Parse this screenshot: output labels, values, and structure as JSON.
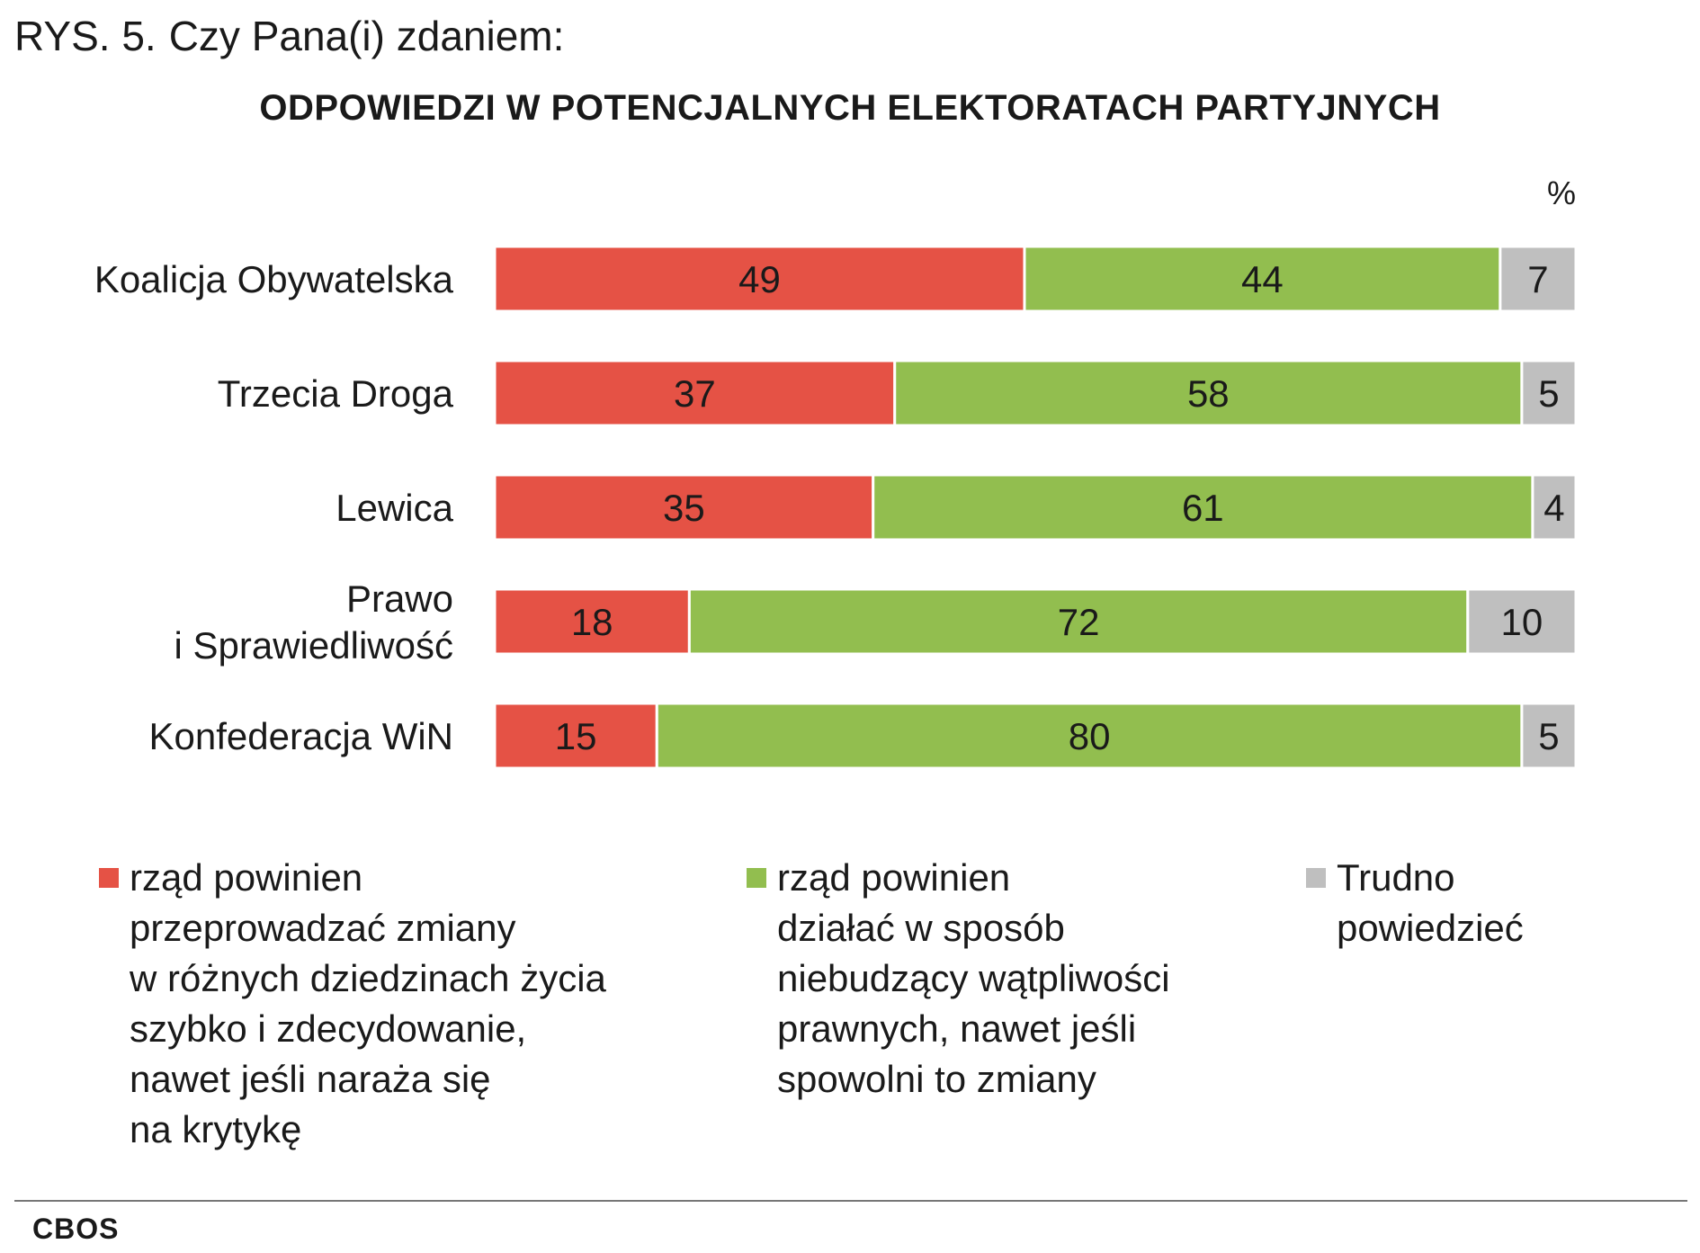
{
  "title": {
    "number": "RYS. 5.",
    "question": "Czy Pana(i) zdaniem:"
  },
  "subtitle": "ODPOWIEDZI W POTENCJALNYCH ELEKTORATACH PARTYJNYCH",
  "unit": "%",
  "source": "CBOS",
  "chart_data": {
    "type": "bar",
    "orientation": "horizontal",
    "stacked": true,
    "xlim": [
      0,
      100
    ],
    "grid": false,
    "legend_position": "bottom",
    "categories": [
      [
        "Koalicja Obywatelska"
      ],
      [
        "Trzecia Droga"
      ],
      [
        "Lewica"
      ],
      [
        "Prawo",
        "i Sprawiedliwość"
      ],
      [
        "Konfederacja WiN"
      ]
    ],
    "series": [
      {
        "name": "rząd powinien\nprzeprowadzać zmiany\nw różnych dziedzinach życia\nszybko i zdecydowanie,\nnawet jeśli naraża się\nna krytykę",
        "color": "#e55245",
        "values": [
          49,
          37,
          35,
          18,
          15
        ]
      },
      {
        "name": "rząd powinien\ndziałać w sposób\nniebudzący wątpliwości\nprawnych, nawet jeśli\nspowolni to zmiany",
        "color": "#92be4f",
        "values": [
          44,
          58,
          61,
          72,
          80
        ]
      },
      {
        "name": "Trudno\npowiedzieć",
        "color": "#bfbfbf",
        "values": [
          7,
          5,
          4,
          10,
          5
        ]
      }
    ]
  }
}
